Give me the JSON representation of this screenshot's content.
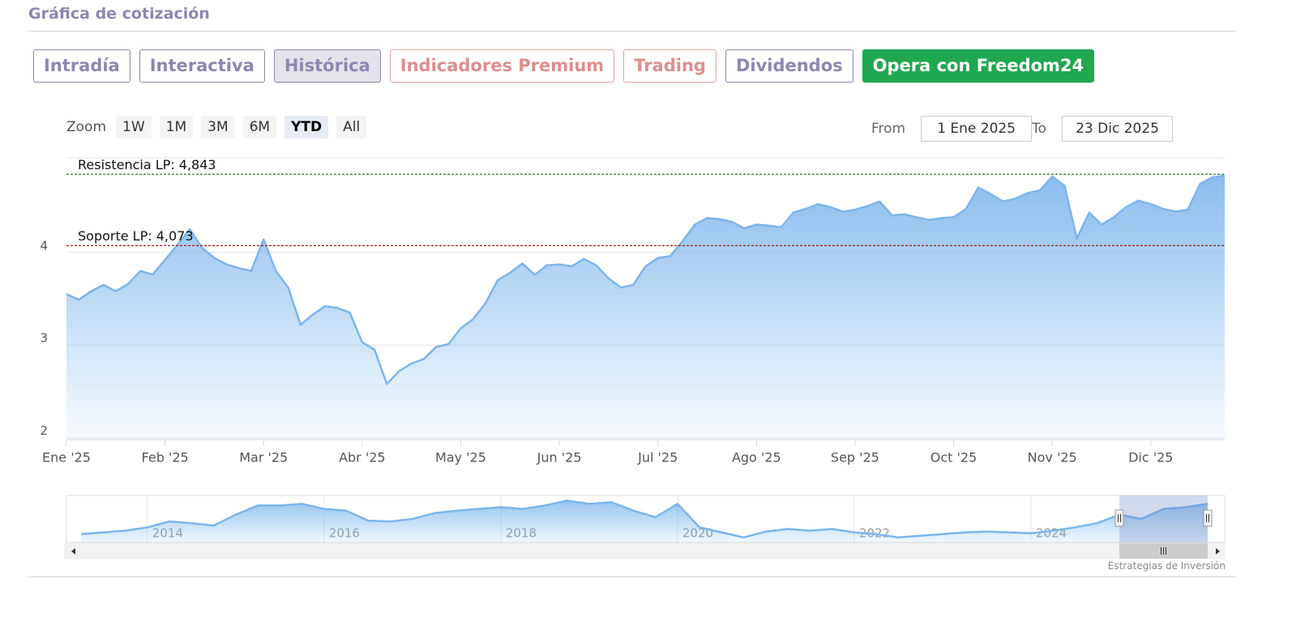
{
  "header": {
    "title": "Gráfica de cotización"
  },
  "tabs": [
    "Intradía",
    "Interactiva",
    "Histórica",
    "Indicadores Premium",
    "Trading",
    "Dividendos",
    "Opera con Freedom24"
  ],
  "active_tab": 2,
  "zoom": {
    "label": "Zoom",
    "buttons": [
      "1W",
      "1M",
      "3M",
      "6M",
      "YTD",
      "All"
    ],
    "active": 4
  },
  "range": {
    "from_label": "From",
    "from": "1 Ene 2025",
    "to_label": "To",
    "to": "23 Dic 2025"
  },
  "chart_data": [
    {
      "type": "area",
      "color": "#7cb5ec",
      "categories": [
        "Ene '25",
        null,
        null,
        null,
        null,
        null,
        null,
        null,
        "Feb '25",
        null,
        null,
        null,
        null,
        null,
        null,
        null,
        "Mar '25",
        null,
        null,
        null,
        null,
        null,
        null,
        null,
        "Abr '25",
        null,
        null,
        null,
        null,
        null,
        null,
        null,
        "May '25",
        null,
        null,
        null,
        null,
        null,
        null,
        null,
        "Jun '25",
        null,
        null,
        null,
        null,
        null,
        null,
        null,
        "Jul '25",
        null,
        null,
        null,
        null,
        null,
        null,
        null,
        "Ago '25",
        null,
        null,
        null,
        null,
        null,
        null,
        null,
        "Sep '25",
        null,
        null,
        null,
        null,
        null,
        null,
        null,
        "Oct '25",
        null,
        null,
        null,
        null,
        null,
        null,
        null,
        "Nov '25",
        null,
        null,
        null,
        null,
        null,
        null,
        null,
        "Dic '25",
        null,
        null,
        null,
        null,
        null,
        null
      ],
      "values": [
        3.55,
        3.49,
        3.58,
        3.65,
        3.58,
        3.66,
        3.8,
        3.76,
        3.92,
        4.08,
        4.25,
        4.05,
        3.94,
        3.87,
        3.83,
        3.8,
        4.14,
        3.8,
        3.62,
        3.22,
        3.33,
        3.42,
        3.4,
        3.35,
        3.03,
        2.95,
        2.58,
        2.72,
        2.8,
        2.85,
        2.98,
        3.01,
        3.18,
        3.28,
        3.45,
        3.7,
        3.78,
        3.88,
        3.76,
        3.86,
        3.87,
        3.85,
        3.93,
        3.86,
        3.72,
        3.62,
        3.65,
        3.85,
        3.94,
        3.96,
        4.12,
        4.3,
        4.37,
        4.36,
        4.33,
        4.26,
        4.3,
        4.29,
        4.27,
        4.43,
        4.47,
        4.52,
        4.49,
        4.44,
        4.46,
        4.5,
        4.55,
        4.4,
        4.41,
        4.38,
        4.35,
        4.37,
        4.38,
        4.47,
        4.7,
        4.63,
        4.55,
        4.58,
        4.64,
        4.67,
        4.82,
        4.72,
        4.15,
        4.43,
        4.3,
        4.38,
        4.49,
        4.56,
        4.52,
        4.47,
        4.44,
        4.46,
        4.74,
        4.81,
        4.83
      ],
      "ylim": [
        1.98,
        5.02
      ],
      "yticks": [
        2,
        3,
        4
      ],
      "grid": true,
      "plot_lines": [
        {
          "label": "Resistencia LP: 4,843",
          "value": 4.843,
          "color": "#2e7d32"
        },
        {
          "label": "Soporte LP: 4,073",
          "value": 4.073,
          "color": "#9b1c1c"
        }
      ]
    },
    {
      "type": "area",
      "color": "#7cb5ec",
      "categories": [
        null,
        null,
        null,
        "2014",
        null,
        null,
        null,
        null,
        null,
        null,
        null,
        "2016",
        null,
        null,
        null,
        null,
        null,
        null,
        null,
        "2018",
        null,
        null,
        null,
        null,
        null,
        null,
        null,
        "2020",
        null,
        null,
        null,
        null,
        null,
        null,
        null,
        "2022",
        null,
        null,
        null,
        null,
        null,
        null,
        null,
        "2024",
        null,
        null,
        null,
        null,
        null,
        null,
        null,
        null
      ],
      "values": [
        1.35,
        1.55,
        1.74,
        2.12,
        2.79,
        2.6,
        2.31,
        3.56,
        4.61,
        4.61,
        4.8,
        4.23,
        4.03,
        2.89,
        2.79,
        3.08,
        3.75,
        4.03,
        4.23,
        4.42,
        4.23,
        4.61,
        5.18,
        4.8,
        4.99,
        4.03,
        3.27,
        4.8,
        2.12,
        1.55,
        0.97,
        1.64,
        1.93,
        1.74,
        1.93,
        1.55,
        1.35,
        0.97,
        1.16,
        1.35,
        1.55,
        1.64,
        1.55,
        1.45,
        1.74,
        2.12,
        2.6,
        3.56,
        3.08,
        4.23,
        4.42,
        4.8
      ],
      "ylim": [
        0.4,
        5.76
      ]
    }
  ],
  "credit": "Estrategias de Inversión"
}
